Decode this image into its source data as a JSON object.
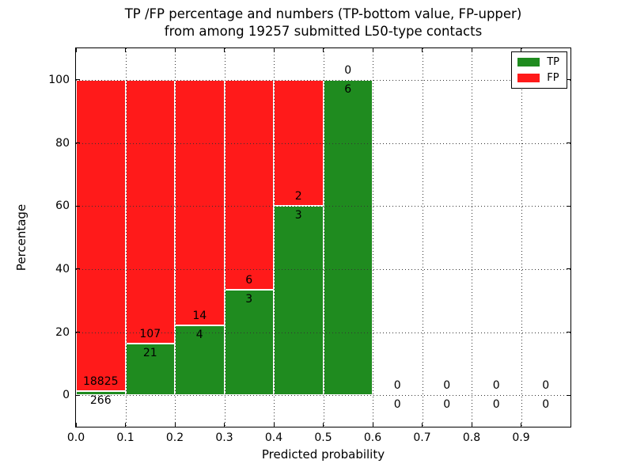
{
  "figure": {
    "background": "#ffffff",
    "axes_color": "#000000"
  },
  "chart_data": {
    "type": "bar",
    "stacked": true,
    "title": "TP /FP percentage and numbers (TP-bottom value, FP-upper)\nfrom among 19257 submitted L50-type contacts",
    "title_line1": "TP /FP percentage and numbers (TP-bottom value, FP-upper)",
    "title_line2": "from among 19257 submitted L50-type contacts",
    "xlabel": "Predicted probability",
    "ylabel": "Percentage",
    "xlim": [
      0.0,
      1.0
    ],
    "ylim": [
      -10,
      110
    ],
    "grid": {
      "visible": true,
      "style": "dotted",
      "color": "#333333",
      "above_bars": true
    },
    "xtick_values": [
      0.0,
      0.1,
      0.2,
      0.3,
      0.4,
      0.5,
      0.6,
      0.7,
      0.8,
      0.9
    ],
    "xtick_labels": [
      "0.0",
      "0.1",
      "0.2",
      "0.3",
      "0.4",
      "0.5",
      "0.6",
      "0.7",
      "0.8",
      "0.9"
    ],
    "ytick_values": [
      0,
      20,
      40,
      60,
      80,
      100
    ],
    "ytick_labels": [
      "0",
      "20",
      "40",
      "60",
      "80",
      "100"
    ],
    "colors": {
      "tp": "#1f8b1f",
      "fp": "#ff1a1a",
      "bar_edge": "#ffffff"
    },
    "legend": [
      {
        "label": "TP",
        "color": "#1f8b1f"
      },
      {
        "label": "FP",
        "color": "#ff1a1a"
      }
    ],
    "legend_position": "upper right",
    "bins": [
      {
        "x0": 0.0,
        "x1": 0.1,
        "tp_count": 266,
        "fp_count": 18825,
        "tp_pct": 1.39
      },
      {
        "x0": 0.1,
        "x1": 0.2,
        "tp_count": 21,
        "fp_count": 107,
        "tp_pct": 16.41
      },
      {
        "x0": 0.2,
        "x1": 0.3,
        "tp_count": 4,
        "fp_count": 14,
        "tp_pct": 22.22
      },
      {
        "x0": 0.3,
        "x1": 0.4,
        "tp_count": 3,
        "fp_count": 6,
        "tp_pct": 33.33
      },
      {
        "x0": 0.4,
        "x1": 0.5,
        "tp_count": 3,
        "fp_count": 2,
        "tp_pct": 60.0
      },
      {
        "x0": 0.5,
        "x1": 0.6,
        "tp_count": 6,
        "fp_count": 0,
        "tp_pct": 100.0
      },
      {
        "x0": 0.6,
        "x1": 0.7,
        "tp_count": 0,
        "fp_count": 0,
        "tp_pct": 0.0
      },
      {
        "x0": 0.7,
        "x1": 0.8,
        "tp_count": 0,
        "fp_count": 0,
        "tp_pct": 0.0
      },
      {
        "x0": 0.8,
        "x1": 0.9,
        "tp_count": 0,
        "fp_count": 0,
        "tp_pct": 0.0
      },
      {
        "x0": 0.9,
        "x1": 1.0,
        "tp_count": 0,
        "fp_count": 0,
        "tp_pct": 0.0
      }
    ]
  }
}
